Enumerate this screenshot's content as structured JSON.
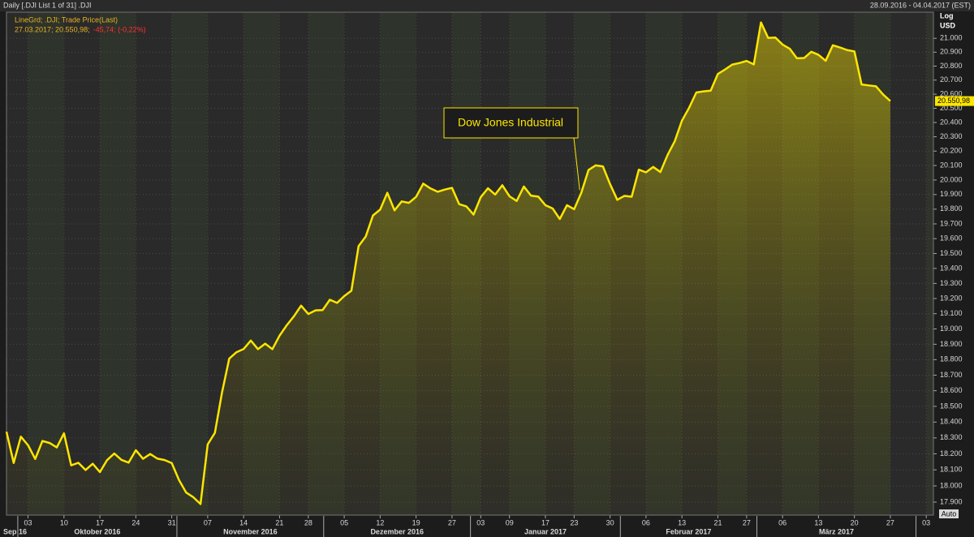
{
  "chart_data": {
    "type": "line",
    "title": "Daily [.DJI List 1 of 31] .DJI",
    "date_range": "28.09.2016 - 04.04.2017 (EST)",
    "legend_title": "LineGrd; .DJI; Trade Price(Last)",
    "legend_value": "27.03.2017; 20.550,98;",
    "legend_change": "-45,74; (-0,22%)",
    "y_scale_label": "Log",
    "y_unit_label": "USD",
    "scale_button": "Auto",
    "log_scale": true,
    "grid": true,
    "months": [
      "Sep 16",
      "Oktober 2016",
      "November 2016",
      "Dezember 2016",
      "Januar 2017",
      "Februar 2017",
      "März 2017"
    ],
    "categories": [
      null,
      null,
      null,
      "03",
      null,
      null,
      null,
      null,
      "10",
      null,
      null,
      null,
      null,
      "17",
      null,
      null,
      null,
      null,
      "24",
      null,
      null,
      null,
      null,
      "31",
      null,
      null,
      null,
      null,
      "07",
      null,
      null,
      null,
      null,
      "14",
      null,
      null,
      null,
      null,
      "21",
      null,
      null,
      null,
      "28",
      null,
      null,
      null,
      null,
      "05",
      null,
      null,
      null,
      null,
      "12",
      null,
      null,
      null,
      null,
      "19",
      null,
      null,
      null,
      null,
      "27",
      null,
      null,
      null,
      "03",
      null,
      null,
      null,
      "09",
      null,
      null,
      null,
      null,
      "17",
      null,
      null,
      null,
      "23",
      null,
      null,
      null,
      null,
      "30",
      null,
      null,
      null,
      null,
      "06",
      null,
      null,
      null,
      null,
      "13",
      null,
      null,
      null,
      null,
      "21",
      null,
      null,
      null,
      "27",
      null,
      null,
      null,
      null,
      "06",
      null,
      null,
      null,
      null,
      "13",
      null,
      null,
      null,
      null,
      "20",
      null,
      null,
      null,
      null,
      "27",
      null,
      null,
      null,
      null,
      "03",
      null
    ],
    "series": [
      {
        "name": "Dow Jones Industrial",
        "color": "#ffe600",
        "values": [
          18339,
          18143,
          18308,
          18254,
          18168,
          18281,
          18268,
          18240,
          18329,
          18128,
          18144,
          18099,
          18138,
          18086,
          18161,
          18202,
          18162,
          18145,
          18223,
          18169,
          18199,
          18170,
          18161,
          18142,
          18037,
          17959,
          17930,
          17888,
          18259,
          18332,
          18590,
          18807,
          18848,
          18869,
          18924,
          18868,
          18904,
          18868,
          18956,
          19024,
          19083,
          19153,
          19098,
          19122,
          19124,
          19192,
          19171,
          19216,
          19252,
          19550,
          19615,
          19757,
          19797,
          19912,
          19792,
          19853,
          19843,
          19884,
          19975,
          19942,
          19919,
          19934,
          19946,
          19834,
          19819,
          19763,
          19882,
          19943,
          19900,
          19964,
          19888,
          19856,
          19955,
          19892,
          19886,
          19827,
          19805,
          19733,
          19827,
          19800,
          19913,
          20069,
          20101,
          20094,
          19971,
          19864,
          19891,
          19885,
          20071,
          20053,
          20090,
          20055,
          20173,
          20269,
          20413,
          20504,
          20612,
          20620,
          20625,
          20744,
          20776,
          20811,
          20822,
          20837,
          20812,
          21115,
          21003,
          21006,
          20955,
          20925,
          20856,
          20858,
          20903,
          20881,
          20838,
          20950,
          20934,
          20915,
          20906,
          20669,
          20662,
          20656,
          20597,
          20550.98,
          null,
          null,
          null,
          null,
          null,
          null
        ],
        "value_labels": [
          null,
          null,
          null,
          null,
          null,
          null,
          null,
          null,
          null,
          null,
          null,
          null,
          null,
          null,
          null,
          null,
          null,
          null,
          null,
          null,
          null,
          null,
          null,
          null,
          null,
          null,
          null,
          null,
          null,
          null,
          null,
          null,
          null,
          null,
          null,
          null,
          null,
          null,
          null,
          null,
          null,
          null,
          null,
          null,
          null,
          null,
          null,
          null,
          null,
          null,
          null,
          null,
          null,
          null,
          null,
          null,
          null,
          null,
          null,
          null,
          null,
          null,
          null,
          null,
          null,
          null,
          null,
          null,
          null,
          null,
          null,
          null,
          null,
          null,
          null,
          null,
          null,
          null,
          null,
          null,
          null,
          null,
          null,
          null,
          null,
          null,
          null,
          null,
          null,
          null,
          null,
          null,
          null,
          null,
          null,
          null,
          null,
          null,
          null,
          null,
          null,
          null,
          null,
          null,
          null,
          null,
          null,
          null,
          null,
          null,
          null,
          null,
          null,
          null,
          null,
          null,
          null,
          null,
          null,
          null,
          null,
          null,
          null,
          "20.550,98",
          null,
          null,
          null,
          null,
          null,
          null
        ]
      }
    ],
    "ylim": [
      17820,
      21190
    ],
    "yticks": [
      {
        "value": 17900,
        "label": "17.900"
      },
      {
        "value": 18000,
        "label": "18.000"
      },
      {
        "value": 18100,
        "label": "18.100"
      },
      {
        "value": 18200,
        "label": "18.200"
      },
      {
        "value": 18300,
        "label": "18.300"
      },
      {
        "value": 18400,
        "label": "18.400"
      },
      {
        "value": 18500,
        "label": "18.500"
      },
      {
        "value": 18600,
        "label": "18.600"
      },
      {
        "value": 18700,
        "label": "18.700"
      },
      {
        "value": 18800,
        "label": "18.800"
      },
      {
        "value": 18900,
        "label": "18.900"
      },
      {
        "value": 19000,
        "label": "19.000"
      },
      {
        "value": 19100,
        "label": "19.100"
      },
      {
        "value": 19200,
        "label": "19.200"
      },
      {
        "value": 19300,
        "label": "19.300"
      },
      {
        "value": 19400,
        "label": "19.400"
      },
      {
        "value": 19500,
        "label": "19.500"
      },
      {
        "value": 19600,
        "label": "19.600"
      },
      {
        "value": 19700,
        "label": "19.700"
      },
      {
        "value": 19800,
        "label": "19.800"
      },
      {
        "value": 19900,
        "label": "19.900"
      },
      {
        "value": 20000,
        "label": "20.000"
      },
      {
        "value": 20100,
        "label": "20.100"
      },
      {
        "value": 20200,
        "label": "20.200"
      },
      {
        "value": 20300,
        "label": "20.300"
      },
      {
        "value": 20400,
        "label": "20.400"
      },
      {
        "value": 20500,
        "label": "20.500"
      },
      {
        "value": 20600,
        "label": "20.600"
      },
      {
        "value": 20700,
        "label": "20.700"
      },
      {
        "value": 20800,
        "label": "20.800"
      },
      {
        "value": 20900,
        "label": "20.900"
      },
      {
        "value": 21000,
        "label": "21.000"
      }
    ]
  }
}
